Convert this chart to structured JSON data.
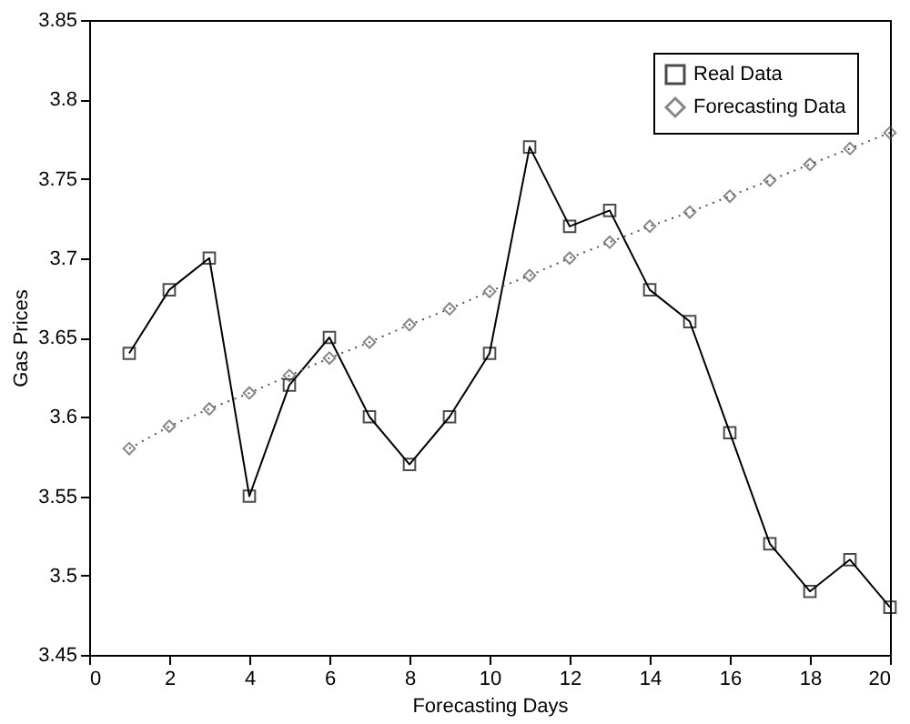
{
  "chart_data": {
    "type": "line",
    "xlabel": "Forecasting Days",
    "ylabel": "Gas Prices",
    "x": [
      1,
      2,
      3,
      4,
      5,
      6,
      7,
      8,
      9,
      10,
      11,
      12,
      13,
      14,
      15,
      16,
      17,
      18,
      19,
      20
    ],
    "series": [
      {
        "name": "Real Data",
        "color": "#000000",
        "marker": "square",
        "line_style": "solid",
        "values": [
          3.64,
          3.68,
          3.7,
          3.55,
          3.62,
          3.65,
          3.6,
          3.57,
          3.6,
          3.64,
          3.77,
          3.72,
          3.73,
          3.68,
          3.66,
          3.59,
          3.52,
          3.49,
          3.51,
          3.48
        ]
      },
      {
        "name": "Forecasting Data",
        "color": "#555555",
        "marker": "diamond",
        "line_style": "dotted",
        "values": [
          3.58,
          3.594,
          3.605,
          3.615,
          3.626,
          3.637,
          3.647,
          3.658,
          3.668,
          3.679,
          3.689,
          3.7,
          3.71,
          3.72,
          3.729,
          3.739,
          3.749,
          3.759,
          3.769,
          3.779
        ]
      }
    ],
    "xlim": [
      0,
      20
    ],
    "xticks": [
      0,
      2,
      4,
      6,
      8,
      10,
      12,
      14,
      16,
      18,
      20
    ],
    "ylim": [
      3.45,
      3.85
    ],
    "yticks": [
      3.45,
      3.5,
      3.55,
      3.6,
      3.65,
      3.7,
      3.75,
      3.8,
      3.85
    ],
    "grid": false,
    "legend": "top right"
  }
}
